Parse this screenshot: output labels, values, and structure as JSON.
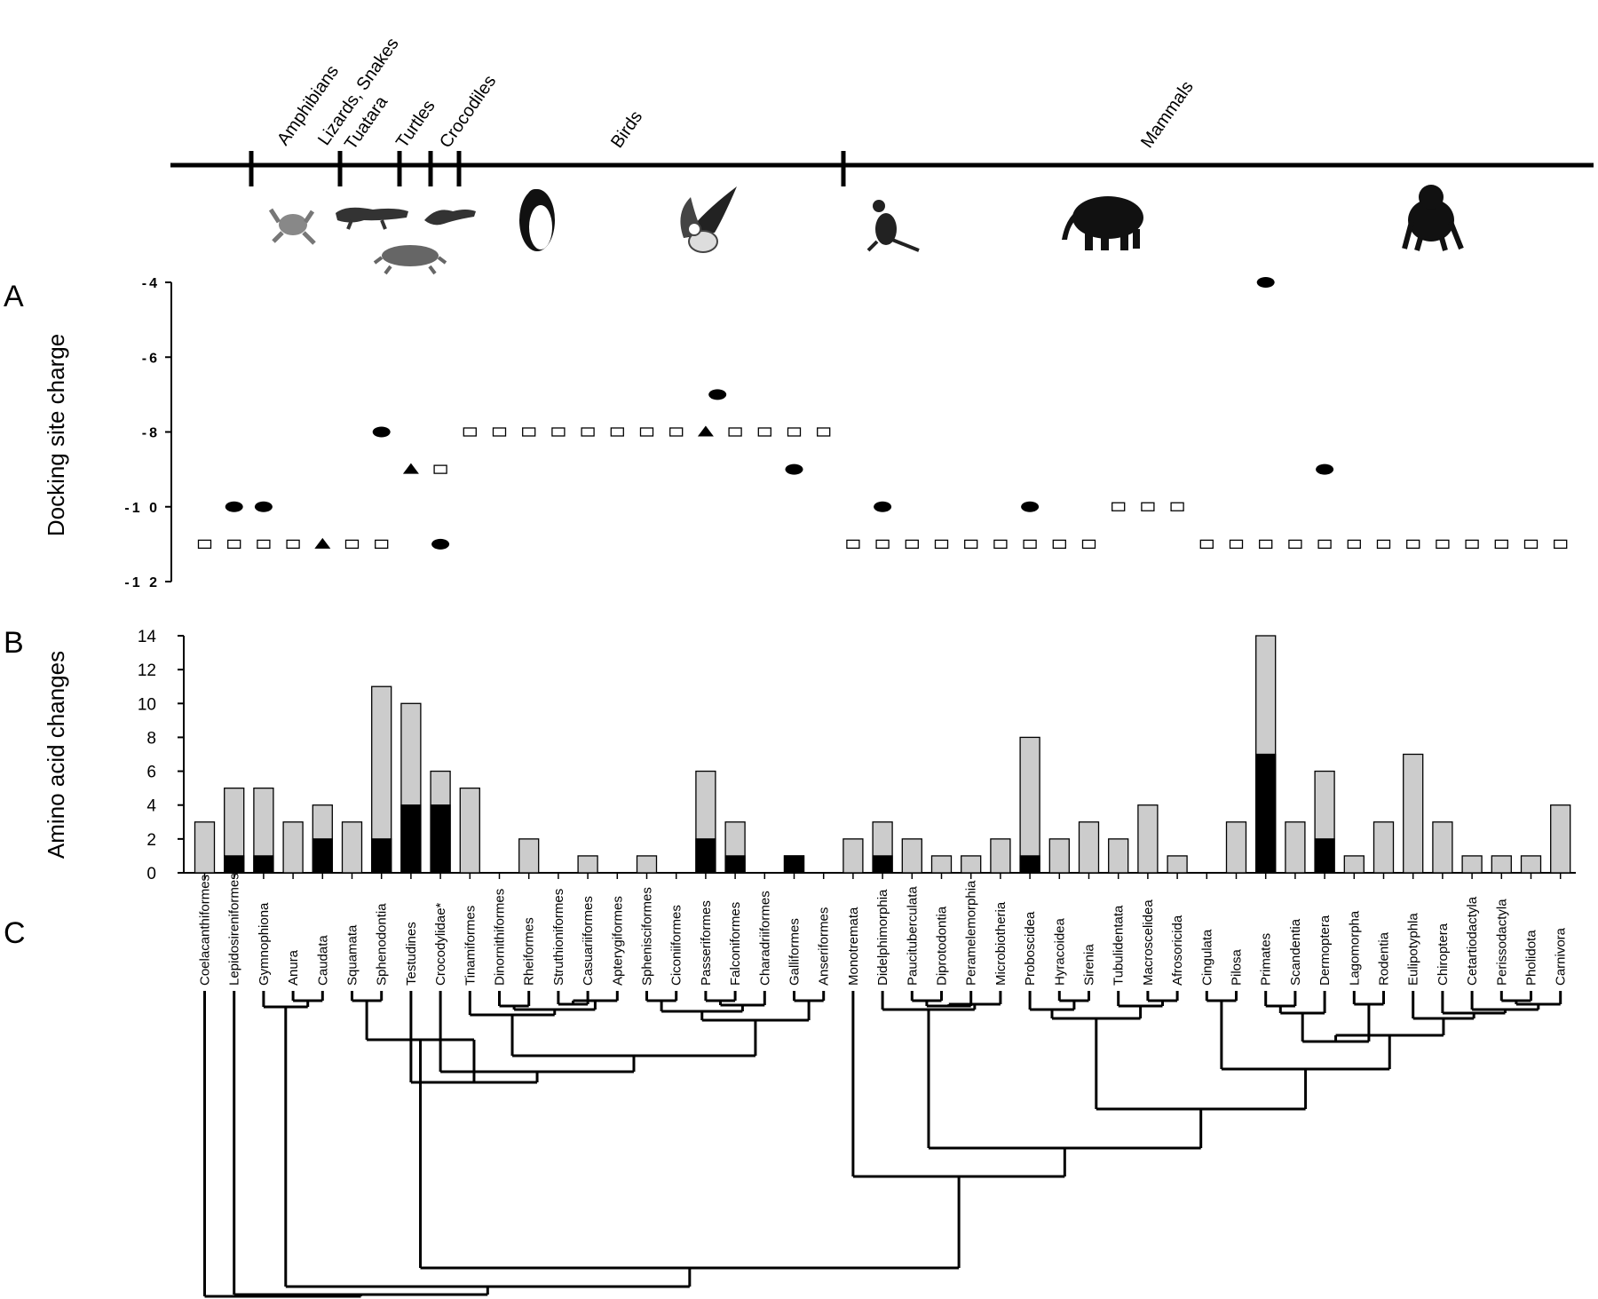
{
  "panel_letters": {
    "a": "A",
    "b": "B",
    "c": "C"
  },
  "chart_data": [
    {
      "type": "scatter",
      "panel": "A",
      "ylabel": "Docking site charge",
      "ylim": [
        -12,
        -4
      ],
      "yticks": [
        -4,
        -6,
        -8,
        -10,
        -12
      ],
      "ytick_labels": [
        "-4",
        "-6",
        "-8",
        "-1 0",
        "-1 2"
      ],
      "marker_legend": {
        "square": "open-square",
        "circle": "filled-ellipse",
        "triangle": "filled-triangle"
      },
      "points": [
        {
          "o": 0,
          "v": -11,
          "m": "square"
        },
        {
          "o": 1,
          "v": -10,
          "m": "circle"
        },
        {
          "o": 1,
          "v": -11,
          "m": "square"
        },
        {
          "o": 2,
          "v": -10,
          "m": "circle"
        },
        {
          "o": 2,
          "v": -11,
          "m": "square"
        },
        {
          "o": 3,
          "v": -11,
          "m": "square"
        },
        {
          "o": 4,
          "v": -11,
          "m": "triangle"
        },
        {
          "o": 5,
          "v": -11,
          "m": "square"
        },
        {
          "o": 6,
          "v": -8,
          "m": "circle"
        },
        {
          "o": 6,
          "v": -11,
          "m": "square"
        },
        {
          "o": 7,
          "v": -9,
          "m": "triangle"
        },
        {
          "o": 8,
          "v": -9,
          "m": "square"
        },
        {
          "o": 8,
          "v": -11,
          "m": "circle"
        },
        {
          "o": 9,
          "v": -8,
          "m": "square"
        },
        {
          "o": 10,
          "v": -8,
          "m": "square"
        },
        {
          "o": 11,
          "v": -8,
          "m": "square"
        },
        {
          "o": 12,
          "v": -8,
          "m": "square"
        },
        {
          "o": 13,
          "v": -8,
          "m": "square"
        },
        {
          "o": 14,
          "v": -8,
          "m": "square"
        },
        {
          "o": 15,
          "v": -8,
          "m": "square"
        },
        {
          "o": 16,
          "v": -8,
          "m": "square"
        },
        {
          "o": 17,
          "v": -8,
          "m": "triangle"
        },
        {
          "o": 17.4,
          "v": -7,
          "m": "circle"
        },
        {
          "o": 18,
          "v": -8,
          "m": "square"
        },
        {
          "o": 19,
          "v": -8,
          "m": "square"
        },
        {
          "o": 20,
          "v": -8,
          "m": "square"
        },
        {
          "o": 20,
          "v": -9,
          "m": "circle"
        },
        {
          "o": 21,
          "v": -8,
          "m": "square"
        },
        {
          "o": 22,
          "v": -11,
          "m": "square"
        },
        {
          "o": 23,
          "v": -10,
          "m": "circle"
        },
        {
          "o": 23,
          "v": -11,
          "m": "square"
        },
        {
          "o": 24,
          "v": -11,
          "m": "square"
        },
        {
          "o": 25,
          "v": -11,
          "m": "square"
        },
        {
          "o": 26,
          "v": -11,
          "m": "square"
        },
        {
          "o": 27,
          "v": -11,
          "m": "square"
        },
        {
          "o": 28,
          "v": -10,
          "m": "circle"
        },
        {
          "o": 28,
          "v": -11,
          "m": "square"
        },
        {
          "o": 29,
          "v": -11,
          "m": "square"
        },
        {
          "o": 30,
          "v": -11,
          "m": "square"
        },
        {
          "o": 31,
          "v": -10,
          "m": "square"
        },
        {
          "o": 32,
          "v": -10,
          "m": "square"
        },
        {
          "o": 33,
          "v": -10,
          "m": "square"
        },
        {
          "o": 34,
          "v": -11,
          "m": "square"
        },
        {
          "o": 35,
          "v": -11,
          "m": "square"
        },
        {
          "o": 36,
          "v": -4,
          "m": "circle"
        },
        {
          "o": 36,
          "v": -11,
          "m": "square"
        },
        {
          "o": 37,
          "v": -11,
          "m": "square"
        },
        {
          "o": 38,
          "v": -9,
          "m": "circle"
        },
        {
          "o": 38,
          "v": -11,
          "m": "square"
        },
        {
          "o": 39,
          "v": -11,
          "m": "square"
        },
        {
          "o": 40,
          "v": -11,
          "m": "square"
        },
        {
          "o": 41,
          "v": -11,
          "m": "square"
        },
        {
          "o": 42,
          "v": -11,
          "m": "square"
        },
        {
          "o": 43,
          "v": -11,
          "m": "square"
        },
        {
          "o": 44,
          "v": -11,
          "m": "square"
        },
        {
          "o": 45,
          "v": -11,
          "m": "square"
        },
        {
          "o": 46,
          "v": -11,
          "m": "square"
        }
      ]
    },
    {
      "type": "bar",
      "panel": "B",
      "ylabel": "Amino acid changes",
      "ylim": [
        0,
        14
      ],
      "yticks": [
        0,
        2,
        4,
        6,
        8,
        10,
        12,
        14
      ],
      "colors": {
        "total": "#cccccc",
        "black_part": "#000000"
      },
      "categories": [
        "Coelacanthiformes",
        "Lepidosireniformes",
        "Gymnophiona",
        "Anura",
        "Caudata",
        "Squamata",
        "Sphenodontia",
        "Testudines",
        "Crocodylidae*",
        "Tinamiformes",
        "Dinornithiformes",
        "Rheiformes",
        "Struthioniformes",
        "Casuariiformes",
        "Apterygiformes",
        "Sphenisciformes",
        "Ciconiiformes",
        "Passeriformes",
        "Falconiformes",
        "Charadriiformes",
        "Galliformes",
        "Anseriformes",
        "Monotremata",
        "Didelphimorphia",
        "Paucituberculata",
        "Diprotodontia",
        "Peramelemorphia",
        "Microbiotheria",
        "Proboscidea",
        "Hyracoidea",
        "Sirenia",
        "Tubulidentata",
        "Macroscelidea",
        "Afrosoricida",
        "Cingulata",
        "Pilosa",
        "Primates",
        "Scandentia",
        "Dermoptera",
        "Lagomorpha",
        "Rodentia",
        "Eulipotyphla",
        "Chiroptera",
        "Cetartiodactyla",
        "Perissodactyla",
        "Pholidota",
        "Carnivora"
      ],
      "series": [
        {
          "values": [
            3,
            5,
            5,
            3,
            4,
            3,
            11,
            10,
            6,
            5,
            0,
            2,
            0,
            1,
            0,
            1,
            0,
            6,
            3,
            0,
            1,
            0,
            2,
            3,
            2,
            1,
            1,
            2,
            8,
            2,
            3,
            2,
            4,
            1,
            0,
            3,
            14,
            3,
            6,
            1,
            3,
            7,
            3,
            1,
            1,
            1,
            4
          ]
        },
        {
          "values": [
            0,
            1,
            1,
            0,
            2,
            0,
            2,
            4,
            4,
            0,
            0,
            0,
            0,
            0,
            0,
            0,
            0,
            2,
            1,
            0,
            1,
            0,
            0,
            1,
            0,
            0,
            0,
            0,
            1,
            0,
            0,
            0,
            0,
            0,
            0,
            0,
            7,
            0,
            2,
            0,
            0,
            0,
            0,
            0,
            0,
            0,
            0
          ]
        }
      ]
    }
  ],
  "groups": {
    "amphibians": "Amphibians",
    "lizards_snakes": "Lizards, Snakes",
    "tuatara": "Tuatara",
    "turtles": "Turtles",
    "crocodiles": "Crocodiles",
    "birds": "Birds",
    "mammals": "Mammals"
  },
  "silhouette_icons": [
    "frog-icon",
    "crocodile-icon",
    "lizard-icon",
    "turtle-icon",
    "penguin-icon",
    "eagle-icon",
    "kangaroo-icon",
    "elephant-icon",
    "chimpanzee-icon"
  ]
}
